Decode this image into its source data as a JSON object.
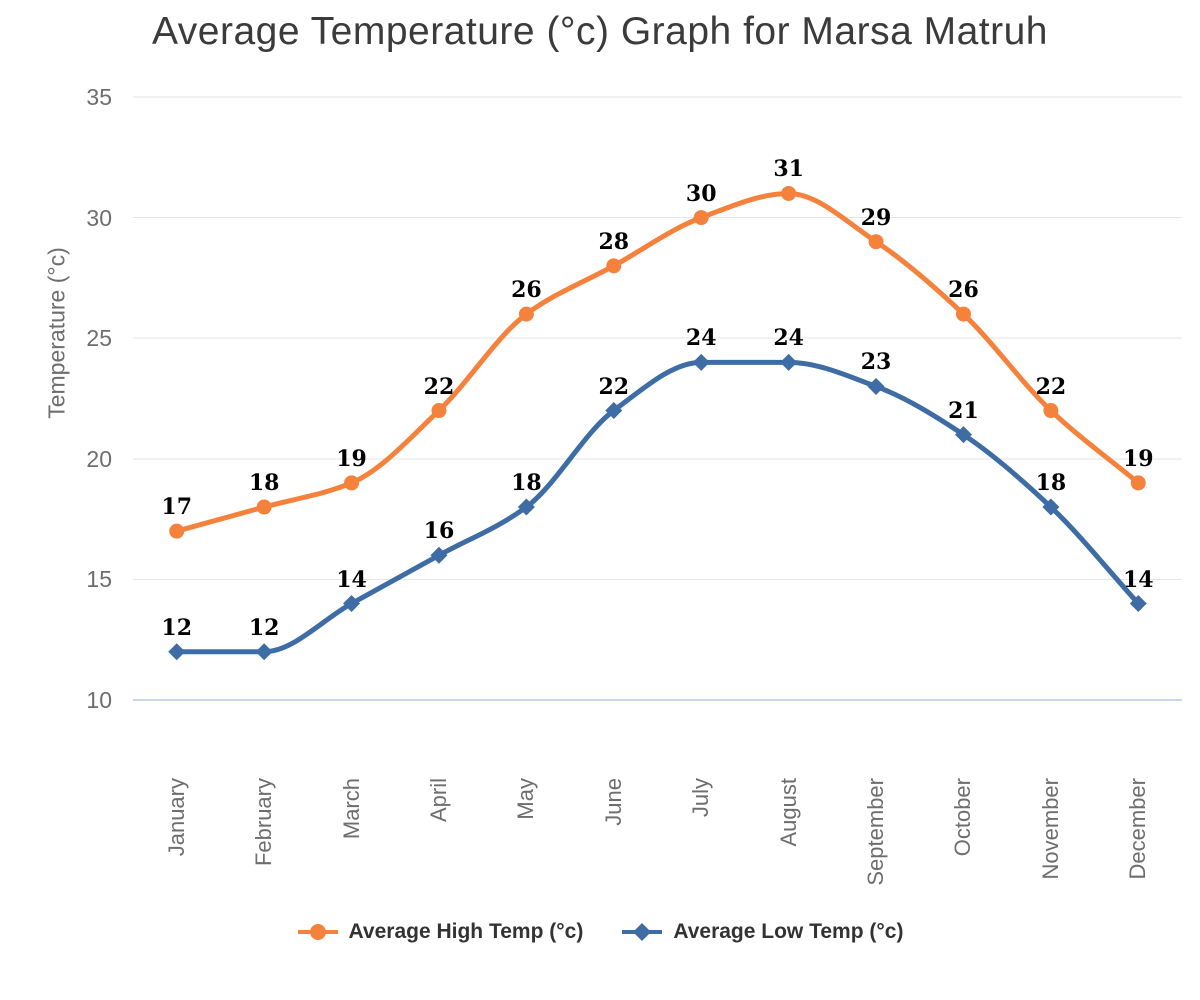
{
  "chart_data": {
    "type": "line",
    "title": "Average Temperature (°c) Graph for Marsa Matruh",
    "categories": [
      "January",
      "February",
      "March",
      "April",
      "May",
      "June",
      "July",
      "August",
      "September",
      "October",
      "November",
      "December"
    ],
    "series": [
      {
        "name": "Average High Temp (°c)",
        "marker": "circle",
        "color": "#F5823C",
        "values": [
          17,
          18,
          19,
          22,
          26,
          28,
          30,
          31,
          29,
          26,
          22,
          19
        ]
      },
      {
        "name": "Average Low Temp (°c)",
        "marker": "diamond",
        "color": "#3E6DA6",
        "values": [
          12,
          12,
          14,
          16,
          18,
          22,
          24,
          24,
          23,
          21,
          18,
          14
        ]
      }
    ],
    "xlabel": "",
    "ylabel": "Temperature (°c)",
    "yticks": [
      35,
      30,
      25,
      20,
      15,
      10
    ],
    "ylim": [
      10,
      35
    ],
    "grid": true,
    "legend_position": "bottom",
    "data_labels": true
  },
  "colors": {
    "background": "#FFFFFF",
    "grid_line": "#E6E6E6",
    "axis_line": "#CCD6EB",
    "title_text": "#3B3B3B",
    "tick_text": "#6E6E6E",
    "data_label_text": "#000000",
    "legend_text": "#333333"
  }
}
